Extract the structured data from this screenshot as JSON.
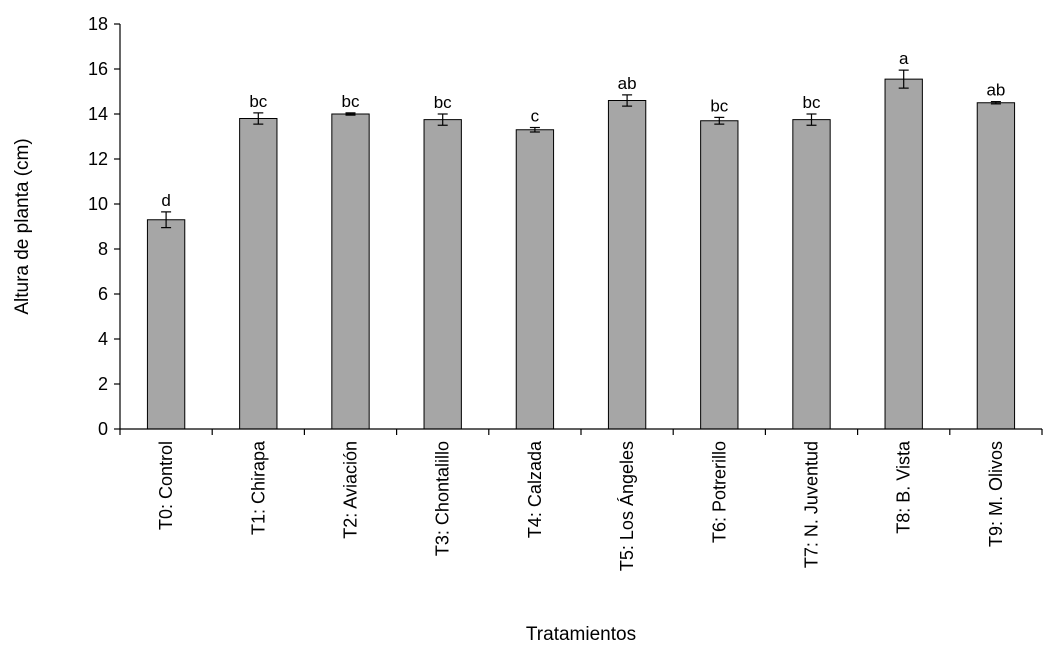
{
  "chart_data": {
    "type": "bar",
    "title": "",
    "xlabel": "Tratamientos",
    "ylabel": "Altura de planta (cm)",
    "ylim": [
      0,
      18
    ],
    "yticks": [
      0,
      2,
      4,
      6,
      8,
      10,
      12,
      14,
      16,
      18
    ],
    "grid": false,
    "legend": "none",
    "bar_color": "#a6a6a6",
    "categories": [
      "T0: Control",
      "T1: Chirapa",
      "T2: Aviación",
      "T3: Chontalillo",
      "T4: Calzada",
      "T5: Los Ángeles",
      "T6: Potrerillo",
      "T7: N. Juventud",
      "T8: B. Vista",
      "T9: M. Olivos"
    ],
    "values": [
      9.3,
      13.8,
      14.0,
      13.75,
      13.3,
      14.6,
      13.7,
      13.75,
      15.55,
      14.5
    ],
    "errors": [
      0.35,
      0.25,
      0.05,
      0.25,
      0.1,
      0.25,
      0.15,
      0.25,
      0.4,
      0.05
    ],
    "significance_letters": [
      "d",
      "bc",
      "bc",
      "bc",
      "c",
      "ab",
      "bc",
      "bc",
      "a",
      "ab"
    ]
  }
}
